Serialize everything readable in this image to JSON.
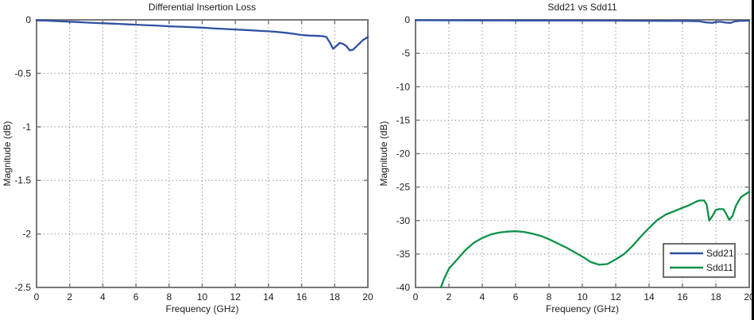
{
  "figure": {
    "background": "#ffffff",
    "edge_border_color": "#000000"
  },
  "style": {
    "axis_color": "#787878",
    "grid_color": "#9a9a9a",
    "text_color": "#1c1c1c",
    "blue": "#2e51a3",
    "green": "#0f9149",
    "legend_border": "#5e5e5e"
  },
  "chart_data": [
    {
      "type": "line",
      "title": "Differential Insertion Loss",
      "xlabel": "Frequency (GHz)",
      "ylabel": "Magnitude (dB)",
      "xlim": [
        0,
        20
      ],
      "ylim": [
        -2.5,
        0
      ],
      "xticks": [
        0,
        2,
        4,
        6,
        8,
        10,
        12,
        14,
        16,
        18,
        20
      ],
      "yticks": [
        0,
        -0.5,
        -1,
        -1.5,
        -2,
        -2.5
      ],
      "grid": true,
      "legend": null,
      "series": [
        {
          "name": "Sdd21",
          "color": "#2e51a3",
          "x": [
            0,
            0.5,
            1,
            1.5,
            2,
            2.5,
            3,
            3.5,
            4,
            4.5,
            5,
            5.5,
            6,
            6.5,
            7,
            7.5,
            8,
            8.5,
            9,
            9.5,
            10,
            10.5,
            11,
            11.5,
            12,
            12.5,
            13,
            13.5,
            14,
            14.5,
            15,
            15.5,
            16,
            16.5,
            17,
            17.3,
            17.5,
            17.7,
            17.9,
            18.1,
            18.3,
            18.5,
            18.7,
            18.9,
            19.1,
            19.3,
            19.5,
            19.7,
            20
          ],
          "y": [
            -0.005,
            -0.007,
            -0.01,
            -0.014,
            -0.018,
            -0.021,
            -0.025,
            -0.029,
            -0.032,
            -0.035,
            -0.038,
            -0.042,
            -0.045,
            -0.049,
            -0.052,
            -0.056,
            -0.06,
            -0.063,
            -0.066,
            -0.07,
            -0.073,
            -0.078,
            -0.082,
            -0.086,
            -0.09,
            -0.094,
            -0.098,
            -0.103,
            -0.107,
            -0.113,
            -0.12,
            -0.13,
            -0.142,
            -0.147,
            -0.15,
            -0.153,
            -0.16,
            -0.21,
            -0.27,
            -0.245,
            -0.215,
            -0.225,
            -0.245,
            -0.285,
            -0.28,
            -0.25,
            -0.22,
            -0.19,
            -0.16
          ]
        }
      ]
    },
    {
      "type": "line",
      "title": "Sdd21 vs Sdd11",
      "xlabel": "Frequency (GHz)",
      "ylabel": "Magnitude (dB)",
      "xlim": [
        0,
        20
      ],
      "ylim": [
        -40,
        0
      ],
      "xticks": [
        0,
        2,
        4,
        6,
        8,
        10,
        12,
        14,
        16,
        18,
        20
      ],
      "yticks": [
        0,
        -5,
        -10,
        -15,
        -20,
        -25,
        -30,
        -35,
        -40
      ],
      "grid": true,
      "legend": {
        "position": "bottom-right",
        "entries": [
          "Sdd21",
          "Sdd11"
        ]
      },
      "series": [
        {
          "name": "Sdd21",
          "color": "#2e51a3",
          "x": [
            0,
            2,
            4,
            6,
            8,
            10,
            12,
            14,
            16,
            17,
            17.4,
            17.8,
            18,
            18.3,
            18.6,
            18.9,
            19.1,
            19.4,
            20
          ],
          "y": [
            -0.06,
            -0.07,
            -0.08,
            -0.09,
            -0.1,
            -0.11,
            -0.12,
            -0.14,
            -0.16,
            -0.2,
            -0.38,
            -0.45,
            -0.3,
            -0.3,
            -0.42,
            -0.45,
            -0.25,
            -0.15,
            -0.12
          ]
        },
        {
          "name": "Sdd11",
          "color": "#0f9149",
          "x": [
            1.4,
            1.7,
            2,
            2.5,
            3,
            3.5,
            4,
            4.5,
            5,
            5.5,
            6,
            6.5,
            7,
            7.5,
            8,
            8.5,
            9,
            9.5,
            10,
            10.5,
            11,
            11.5,
            12,
            12.5,
            13,
            13.5,
            14,
            14.5,
            15,
            15.5,
            16,
            16.4,
            16.8,
            17,
            17.3,
            17.45,
            17.6,
            17.8,
            18,
            18.2,
            18.45,
            18.6,
            18.8,
            19,
            19.2,
            19.5,
            19.8,
            20
          ],
          "y": [
            -40.8,
            -38.8,
            -37.2,
            -35.8,
            -34.4,
            -33.3,
            -32.6,
            -32.1,
            -31.8,
            -31.65,
            -31.6,
            -31.7,
            -31.95,
            -32.3,
            -32.8,
            -33.4,
            -34,
            -34.7,
            -35.4,
            -36.2,
            -36.6,
            -36.5,
            -35.8,
            -35,
            -33.8,
            -32.4,
            -31.1,
            -29.9,
            -29.1,
            -28.6,
            -28.1,
            -27.7,
            -27.2,
            -27,
            -27,
            -27.6,
            -30,
            -29.3,
            -28.4,
            -28.3,
            -28.3,
            -28.9,
            -29.9,
            -29.3,
            -27.8,
            -26.5,
            -26,
            -25.7
          ]
        }
      ]
    }
  ]
}
